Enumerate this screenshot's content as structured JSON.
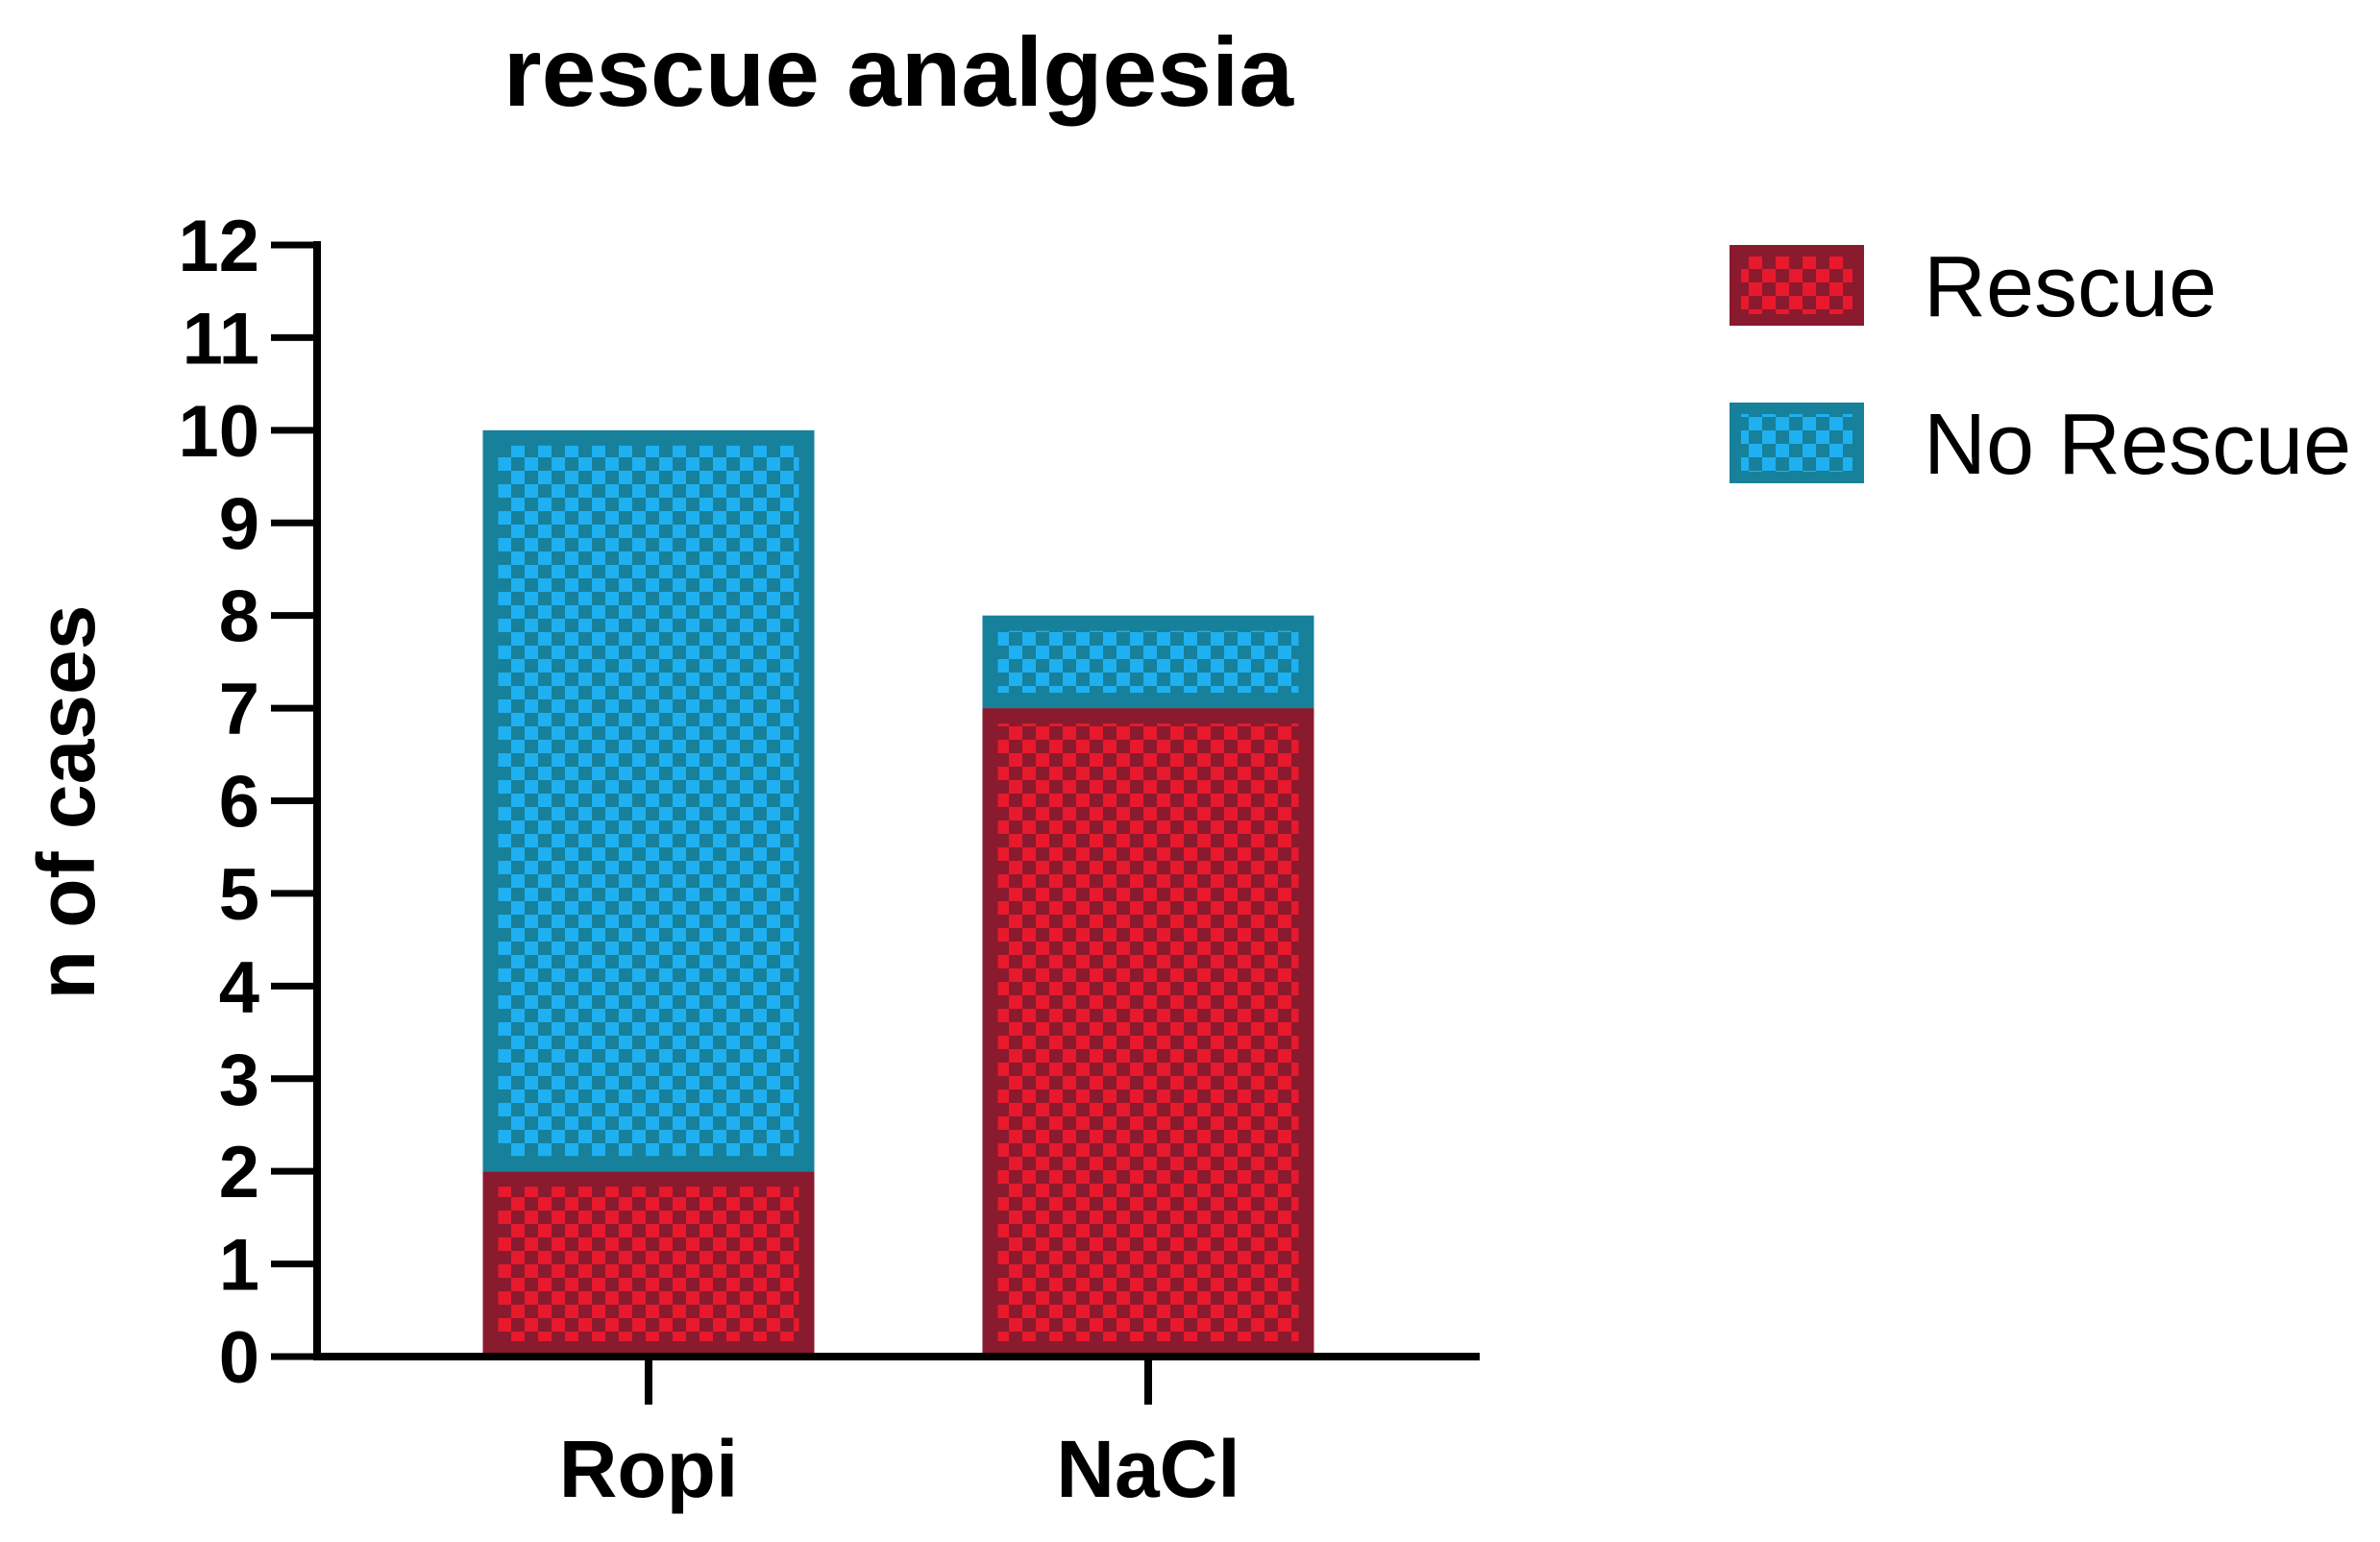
{
  "chart_data": {
    "type": "bar",
    "stacked": true,
    "title": "rescue analgesia",
    "xlabel": "",
    "ylabel": "n of cases",
    "ylim": [
      0,
      12
    ],
    "yticks": [
      "0",
      "1",
      "2",
      "3",
      "4",
      "5",
      "6",
      "7",
      "8",
      "9",
      "10",
      "11",
      "12"
    ],
    "categories": [
      "Ropi",
      "NaCl"
    ],
    "series": [
      {
        "name": "Rescue",
        "values": [
          2,
          7
        ],
        "fill": "#e8192c",
        "dark": "#8a1a2e"
      },
      {
        "name": "No Rescue",
        "values": [
          8,
          1
        ],
        "fill": "#1fb0f2",
        "dark": "#17809a"
      }
    ],
    "legend_position": "top-right",
    "grid": false
  }
}
